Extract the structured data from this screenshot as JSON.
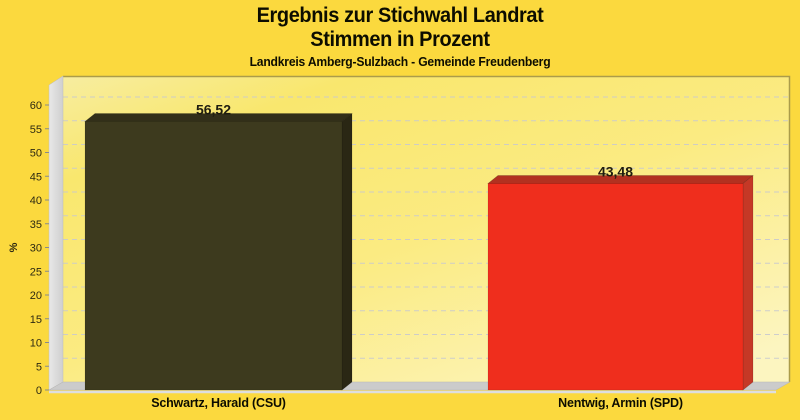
{
  "header": {
    "title_line1": "Ergebnis zur Stichwahl Landrat",
    "title_line2": "Stimmen in Prozent",
    "subtitle": "Landkreis Amberg-Sulzbach - Gemeinde Freudenberg"
  },
  "chart_data": {
    "type": "bar",
    "style": "3d-bars, horizontal dashed gridlines, gray left wall and floor",
    "title": "Ergebnis zur Stichwahl Landrat",
    "subtitle2": "Stimmen in Prozent",
    "subtitle3": "Landkreis Amberg-Sulzbach - Gemeinde Freudenberg",
    "xlabel": "",
    "ylabel": "%",
    "ylim": [
      0,
      63
    ],
    "ytick_min": 0,
    "ytick_max": 60,
    "ytick_step": 5,
    "grid": "on",
    "legend": "none",
    "decimal_separator": ",",
    "categories": [
      "Schwartz, Harald (CSU)",
      "Nentwig, Armin (SPD)"
    ],
    "values": [
      56.52,
      43.48
    ],
    "value_labels": [
      "56,52",
      "43,48"
    ],
    "bar_colors": [
      {
        "name": "csu-black",
        "front": "#3D3A1E",
        "top": "#322F19",
        "side": "#2A2714"
      },
      {
        "name": "spd-red",
        "front": "#EF2E1D",
        "top": "#B23120",
        "side": "#C53826"
      }
    ]
  },
  "palette": {
    "page_background": "#FBD93E",
    "plot_gradient_start": "#F9E76E",
    "plot_gradient_end": "#FCF5C0",
    "plot_border": "#AB9C4A",
    "gridline": "#C9C9CF",
    "wall_light": "#E6E6E6",
    "wall_dark": "#D2D2D2",
    "floor": "#CBCBCB",
    "text": "#0D0D00"
  }
}
